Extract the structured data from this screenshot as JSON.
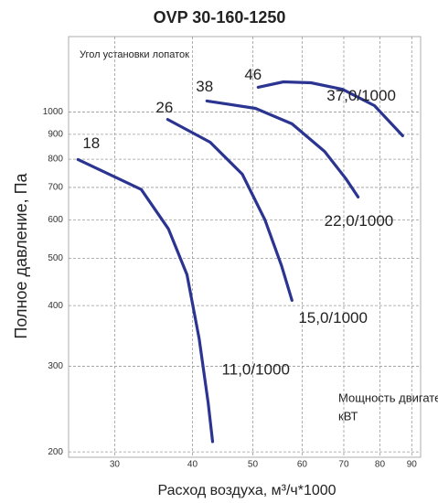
{
  "chart_data": {
    "type": "line",
    "title": "OVP 30-160-1250",
    "xlabel": "Расход воздуха, м³/ч*1000",
    "ylabel": "Полное давление, Па",
    "annotations": [
      "Угол установки лопаток",
      "Мощность двигателя,",
      "кВТ"
    ],
    "xscale": "log",
    "yscale": "log",
    "grid": true,
    "color": "#2b3591",
    "xlim": [
      25.3,
      93
    ],
    "ylim": [
      195,
      1430
    ],
    "xticks": [
      30,
      40,
      50,
      60,
      70,
      80,
      90
    ],
    "yticks": [
      200,
      300,
      400,
      500,
      600,
      700,
      800,
      900,
      1000
    ],
    "series": [
      {
        "name": "18",
        "power": "11,0/1000",
        "x": [
          26.2,
          33.1,
          36.6,
          39.2,
          41.0,
          42.4,
          43.1
        ],
        "values": [
          799,
          693,
          575,
          463,
          342,
          252,
          210
        ]
      },
      {
        "name": "26",
        "power": "15,0/1000",
        "x": [
          36.5,
          42.7,
          48.1,
          52.3,
          55.6,
          57.8
        ],
        "values": [
          966,
          867,
          745,
          600,
          483,
          410
        ]
      },
      {
        "name": "38",
        "power": "22,0/1000",
        "x": [
          42.2,
          50.5,
          57.8,
          65.2,
          70.5,
          73.8
        ],
        "values": [
          1054,
          1018,
          946,
          830,
          730,
          669
        ]
      },
      {
        "name": "46",
        "power": "37,0/1000",
        "x": [
          51.0,
          56.0,
          62.0,
          69.7,
          78.4,
          87.0
        ],
        "values": [
          1125,
          1154,
          1149,
          1114,
          1031,
          894
        ]
      }
    ]
  }
}
